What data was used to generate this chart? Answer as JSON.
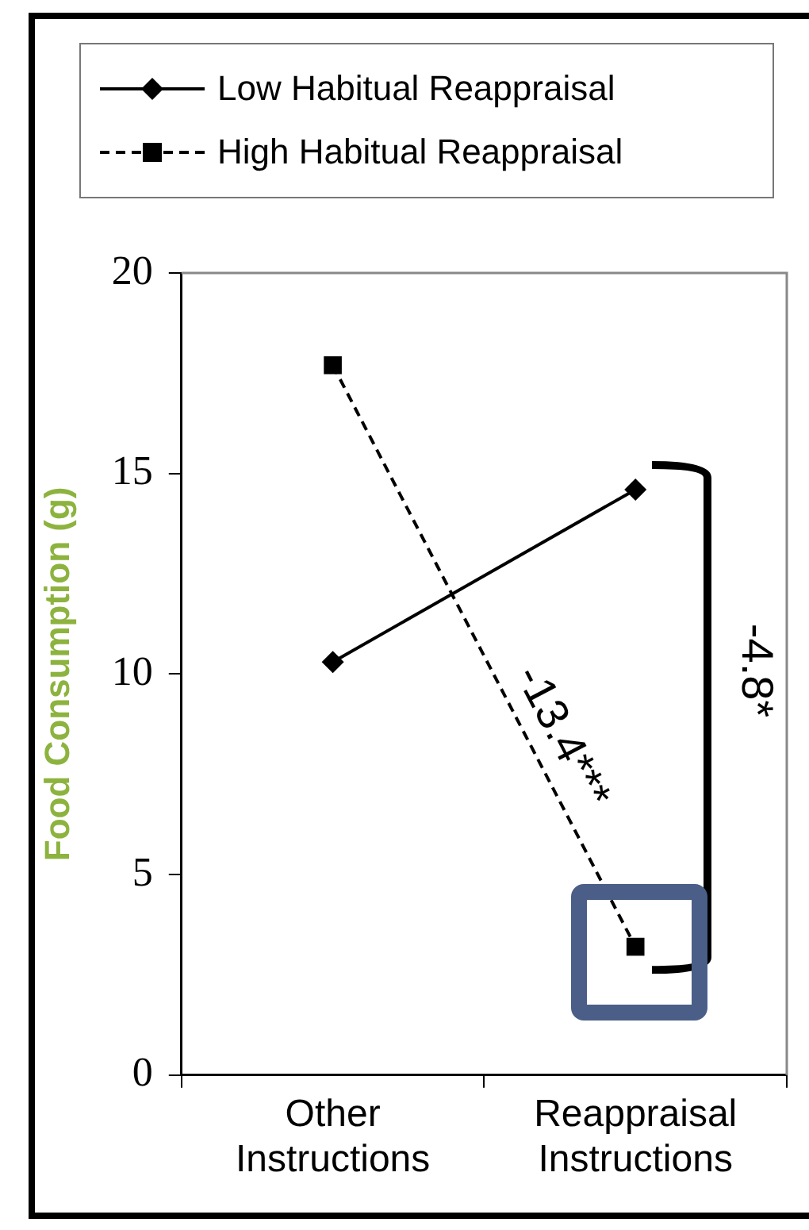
{
  "chart_data": {
    "type": "line",
    "ylabel": "Food Consumption (g)",
    "categories": [
      "Other Instructions",
      "Reappraisal Instructions"
    ],
    "series": [
      {
        "name": "Low Habitual Reappraisal",
        "color": "#000000",
        "values": [
          10.3,
          14.6
        ],
        "marker": "diamond",
        "line_style": "solid"
      },
      {
        "name": "High Habitual Reappraisal",
        "color": "#000000",
        "values": [
          17.7,
          3.2
        ],
        "marker": "square",
        "line_style": "dashed"
      }
    ],
    "ylim": [
      0,
      20
    ],
    "yticks": [
      0,
      5,
      10,
      15,
      20
    ],
    "grid": false,
    "legend": "top",
    "annotations": [
      "-13.4***",
      "-4.8*"
    ]
  }
}
